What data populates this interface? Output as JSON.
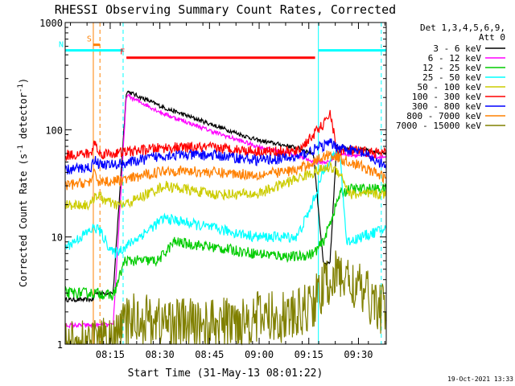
{
  "chart_data": {
    "type": "line",
    "title": "RHESSI Observing Summary Count Rates, Corrected",
    "xlabel": "Start Time (31-May-13 08:01:22)",
    "ylabel_main": "Corrected Count Rate (s",
    "ylabel_sup1": "-1",
    "ylabel_mid": " detector",
    "ylabel_sup2": "-1",
    "ylabel_end": ")",
    "yscale": "log",
    "ylim": [
      1,
      1000
    ],
    "y_ticks": [
      {
        "value": 1,
        "label": "1"
      },
      {
        "value": 10,
        "label": "10"
      },
      {
        "value": 100,
        "label": "100"
      },
      {
        "value": 1000,
        "label": "1000"
      }
    ],
    "xlim_minutes": [
      0,
      97
    ],
    "x_ticks": [
      {
        "minute": 13.6,
        "label": "08:15"
      },
      {
        "minute": 28.6,
        "label": "08:30"
      },
      {
        "minute": 43.6,
        "label": "08:45"
      },
      {
        "minute": 58.6,
        "label": "09:00"
      },
      {
        "minute": 73.6,
        "label": "09:15"
      },
      {
        "minute": 88.6,
        "label": "09:30"
      }
    ],
    "legend_header": [
      "Det 1,3,4,5,6,9,",
      "Att 0"
    ],
    "legend_placement": "right",
    "series": [
      {
        "name": "3 - 6 keV",
        "color": "#000000",
        "points": [
          [
            0,
            2.6
          ],
          [
            8.5,
            2.6
          ],
          [
            9,
            3
          ],
          [
            14.5,
            3
          ],
          [
            18.5,
            230
          ],
          [
            30,
            160
          ],
          [
            45,
            110
          ],
          [
            58,
            80
          ],
          [
            70,
            68
          ],
          [
            75,
            60
          ],
          [
            78,
            5.6
          ],
          [
            80,
            5.6
          ],
          [
            82,
            70
          ],
          [
            97,
            60
          ]
        ]
      },
      {
        "name": "6 - 12 keV",
        "color": "#ff00ff",
        "points": [
          [
            0,
            1.5
          ],
          [
            8.5,
            1.5
          ],
          [
            9,
            1.5
          ],
          [
            14.5,
            1.5
          ],
          [
            18.5,
            210
          ],
          [
            30,
            140
          ],
          [
            45,
            95
          ],
          [
            58,
            70
          ],
          [
            70,
            58
          ],
          [
            75,
            50
          ],
          [
            80,
            50
          ],
          [
            82,
            60
          ],
          [
            97,
            55
          ]
        ]
      },
      {
        "name": "12 - 25 keV",
        "color": "#00cc00",
        "points": [
          [
            0,
            3
          ],
          [
            8.5,
            3
          ],
          [
            10,
            3
          ],
          [
            14.5,
            2.8
          ],
          [
            18,
            6
          ],
          [
            28,
            6
          ],
          [
            33,
            9
          ],
          [
            45,
            8
          ],
          [
            58,
            7
          ],
          [
            70,
            6.5
          ],
          [
            75,
            7
          ],
          [
            78,
            9
          ],
          [
            83,
            25
          ],
          [
            86,
            28
          ],
          [
            97,
            28
          ]
        ]
      },
      {
        "name": "25 - 50 keV",
        "color": "#00ffff",
        "points": [
          [
            0,
            8
          ],
          [
            8.5,
            12
          ],
          [
            10,
            12
          ],
          [
            14.5,
            7
          ],
          [
            18,
            8
          ],
          [
            30,
            15
          ],
          [
            45,
            12
          ],
          [
            58,
            10
          ],
          [
            70,
            10
          ],
          [
            74,
            18
          ],
          [
            78,
            40
          ],
          [
            80,
            55
          ],
          [
            83,
            60
          ],
          [
            85,
            9
          ],
          [
            97,
            12
          ]
        ]
      },
      {
        "name": "50 - 100 keV",
        "color": "#cccc00",
        "points": [
          [
            0,
            20
          ],
          [
            8,
            20
          ],
          [
            9,
            25
          ],
          [
            14.5,
            20
          ],
          [
            18,
            20
          ],
          [
            30,
            30
          ],
          [
            45,
            25
          ],
          [
            58,
            25
          ],
          [
            70,
            35
          ],
          [
            75,
            40
          ],
          [
            80,
            45
          ],
          [
            83,
            40
          ],
          [
            86,
            25
          ],
          [
            97,
            25
          ]
        ]
      },
      {
        "name": "100 - 300 keV",
        "color": "#ff0000",
        "points": [
          [
            0,
            58
          ],
          [
            8,
            60
          ],
          [
            9,
            80
          ],
          [
            10,
            60
          ],
          [
            14.5,
            60
          ],
          [
            20,
            63
          ],
          [
            30,
            68
          ],
          [
            45,
            68
          ],
          [
            58,
            63
          ],
          [
            70,
            62
          ],
          [
            75,
            90
          ],
          [
            79,
            120
          ],
          [
            80,
            150
          ],
          [
            82,
            65
          ],
          [
            97,
            60
          ]
        ]
      },
      {
        "name": "300 - 800 keV",
        "color": "#0000ff",
        "points": [
          [
            0,
            42
          ],
          [
            8,
            45
          ],
          [
            9,
            55
          ],
          [
            10,
            48
          ],
          [
            14.5,
            47
          ],
          [
            20,
            50
          ],
          [
            30,
            58
          ],
          [
            45,
            58
          ],
          [
            58,
            52
          ],
          [
            70,
            55
          ],
          [
            75,
            65
          ],
          [
            80,
            75
          ],
          [
            82,
            70
          ],
          [
            90,
            60
          ],
          [
            97,
            45
          ]
        ]
      },
      {
        "name": "800 - 7000 keV",
        "color": "#ff8000",
        "points": [
          [
            0,
            30
          ],
          [
            8,
            33
          ],
          [
            9,
            40
          ],
          [
            10,
            33
          ],
          [
            14.5,
            33
          ],
          [
            20,
            35
          ],
          [
            30,
            42
          ],
          [
            45,
            40
          ],
          [
            58,
            38
          ],
          [
            70,
            42
          ],
          [
            75,
            50
          ],
          [
            80,
            60
          ],
          [
            82,
            55
          ],
          [
            90,
            45
          ],
          [
            97,
            35
          ]
        ]
      },
      {
        "name": "7000 - 15000 keV",
        "color": "#808000",
        "points": [
          [
            0,
            1
          ],
          [
            8,
            1
          ],
          [
            14.5,
            1
          ],
          [
            20,
            1.8
          ],
          [
            30,
            1.6
          ],
          [
            45,
            1.5
          ],
          [
            58,
            1.8
          ],
          [
            70,
            1.8
          ],
          [
            75,
            2.5
          ],
          [
            80,
            4
          ],
          [
            83,
            4.5
          ],
          [
            90,
            3
          ],
          [
            97,
            2
          ]
        ]
      }
    ],
    "annotations": [
      {
        "label": "S",
        "color": "#ff8000",
        "x": [
          8.5,
          10.5
        ],
        "y": 620
      },
      {
        "label": "N",
        "color": "#00ffff",
        "x": [
          0,
          17.5
        ],
        "y": 550
      },
      {
        "label": "F",
        "color": "#ff0000",
        "x": [
          18.5,
          75.5
        ],
        "y": 470
      },
      {
        "label": "",
        "color": "#00ffff",
        "x": [
          76.5,
          97
        ],
        "y": 550
      }
    ],
    "vertical_markers": [
      {
        "minute": 8.5,
        "color": "#ff8000",
        "style": "solid"
      },
      {
        "minute": 10.5,
        "color": "#ff8000",
        "style": "dashed"
      },
      {
        "minute": 17.5,
        "color": "#00ffff",
        "style": "dashed"
      },
      {
        "minute": 76.5,
        "color": "#00ffff",
        "style": "solid"
      },
      {
        "minute": 95.5,
        "color": "#00ffff",
        "style": "dashed"
      }
    ]
  },
  "footer_timestamp": "19-Oct-2021 13:33"
}
